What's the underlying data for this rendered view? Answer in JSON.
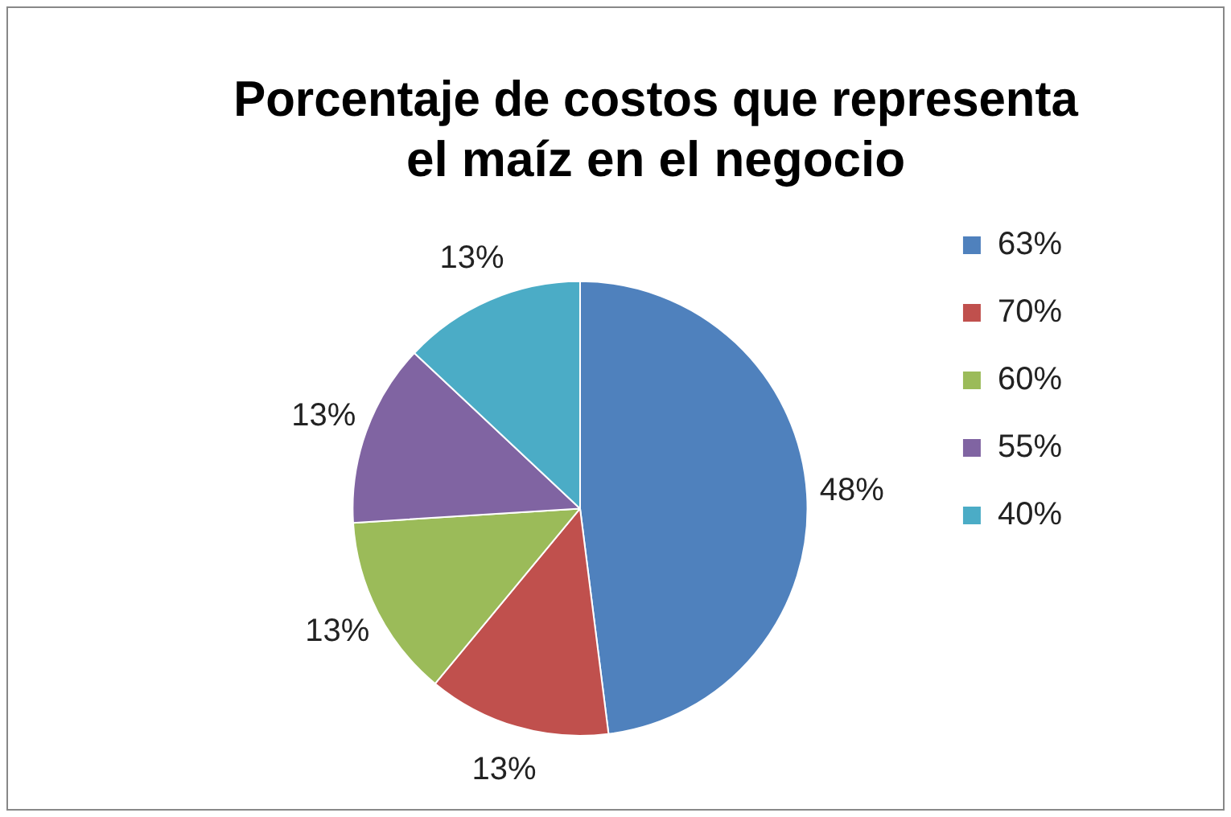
{
  "chart_data": {
    "type": "pie",
    "title": "Porcentaje de costos que representa el maíz en el negocio",
    "categories": [
      "63%",
      "70%",
      "60%",
      "55%",
      "40%"
    ],
    "values": [
      48,
      13,
      13,
      13,
      13
    ],
    "value_labels": [
      "48%",
      "13%",
      "13%",
      "13%",
      "13%"
    ],
    "colors": [
      "#4f81bd",
      "#c0504d",
      "#9bbb59",
      "#8064a2",
      "#4bacc6"
    ],
    "legend": "right"
  }
}
